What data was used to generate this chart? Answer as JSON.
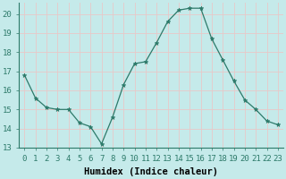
{
  "x": [
    0,
    1,
    2,
    3,
    4,
    5,
    6,
    7,
    8,
    9,
    10,
    11,
    12,
    13,
    14,
    15,
    16,
    17,
    18,
    19,
    20,
    21,
    22,
    23
  ],
  "y": [
    16.8,
    15.6,
    15.1,
    15.0,
    15.0,
    14.3,
    14.1,
    13.2,
    14.6,
    16.3,
    17.4,
    17.5,
    18.5,
    19.6,
    20.2,
    20.3,
    20.3,
    18.7,
    17.6,
    16.5,
    15.5,
    15.0,
    14.4,
    14.2
  ],
  "line_color": "#2d7a6a",
  "marker": "*",
  "marker_size": 3.5,
  "bg_color": "#c5eaea",
  "grid_color": "#e8c8c8",
  "xlabel": "Humidex (Indice chaleur)",
  "ylim": [
    13,
    20.6
  ],
  "xlim": [
    -0.5,
    23.5
  ],
  "yticks": [
    13,
    14,
    15,
    16,
    17,
    18,
    19,
    20
  ],
  "xticks": [
    0,
    1,
    2,
    3,
    4,
    5,
    6,
    7,
    8,
    9,
    10,
    11,
    12,
    13,
    14,
    15,
    16,
    17,
    18,
    19,
    20,
    21,
    22,
    23
  ],
  "xtick_labels": [
    "0",
    "1",
    "2",
    "3",
    "4",
    "5",
    "6",
    "7",
    "8",
    "9",
    "10",
    "11",
    "12",
    "13",
    "14",
    "15",
    "16",
    "17",
    "18",
    "19",
    "20",
    "21",
    "22",
    "23"
  ],
  "xlabel_fontsize": 7.5,
  "tick_fontsize": 6.5,
  "figsize": [
    3.2,
    2.0
  ],
  "dpi": 100
}
